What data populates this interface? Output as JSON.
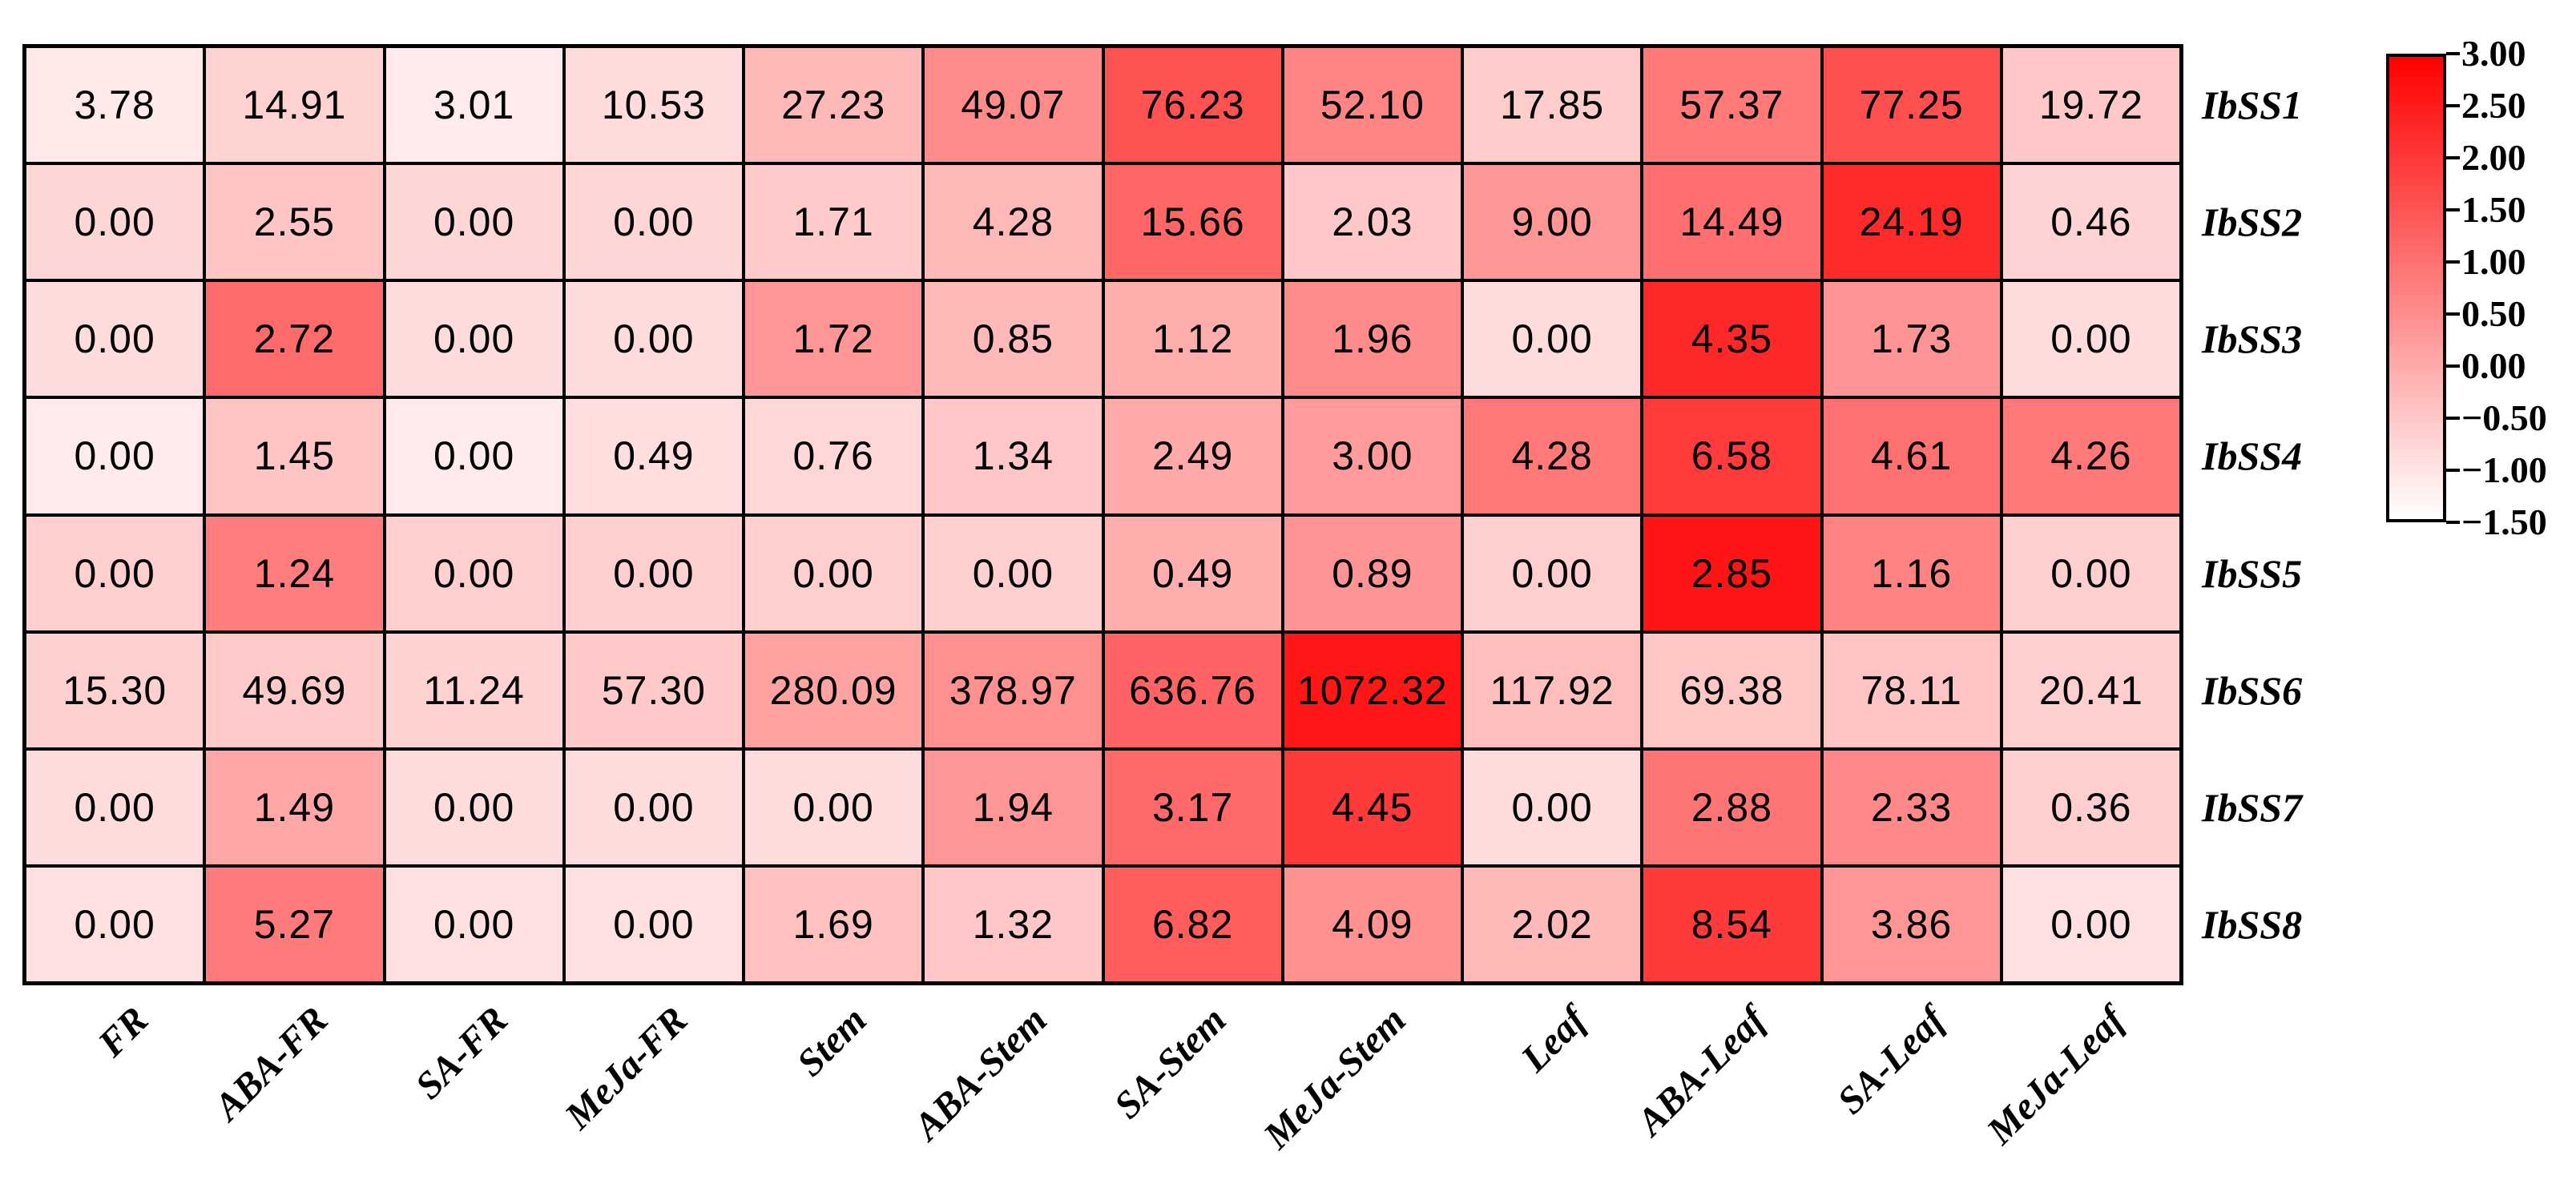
{
  "chart_data": {
    "type": "heatmap",
    "title": "",
    "columns": [
      "FR",
      "ABA-FR",
      "SA-FR",
      "MeJa-FR",
      "Stem",
      "ABA-Stem",
      "SA-Stem",
      "MeJa-Stem",
      "Leaf",
      "ABA-Leaf",
      "SA-Leaf",
      "MeJa-Leaf"
    ],
    "rows": [
      "IbSS1",
      "IbSS2",
      "IbSS3",
      "IbSS4",
      "IbSS5",
      "IbSS6",
      "IbSS7",
      "IbSS8"
    ],
    "values": [
      [
        3.78,
        14.91,
        3.01,
        10.53,
        27.23,
        49.07,
        76.23,
        52.1,
        17.85,
        57.37,
        77.25,
        19.72
      ],
      [
        0.0,
        2.55,
        0.0,
        0.0,
        1.71,
        4.28,
        15.66,
        2.03,
        9.0,
        14.49,
        24.19,
        0.46
      ],
      [
        0.0,
        2.72,
        0.0,
        0.0,
        1.72,
        0.85,
        1.12,
        1.96,
        0.0,
        4.35,
        1.73,
        0.0
      ],
      [
        0.0,
        1.45,
        0.0,
        0.49,
        0.76,
        1.34,
        2.49,
        3.0,
        4.28,
        6.58,
        4.61,
        4.26
      ],
      [
        0.0,
        1.24,
        0.0,
        0.0,
        0.0,
        0.0,
        0.49,
        0.89,
        0.0,
        2.85,
        1.16,
        0.0
      ],
      [
        15.3,
        49.69,
        11.24,
        57.3,
        280.09,
        378.97,
        636.76,
        1072.32,
        117.92,
        69.38,
        78.11,
        20.41
      ],
      [
        0.0,
        1.49,
        0.0,
        0.0,
        0.0,
        1.94,
        3.17,
        4.45,
        0.0,
        2.88,
        2.33,
        0.36
      ],
      [
        0.0,
        5.27,
        0.0,
        0.0,
        1.69,
        1.32,
        6.82,
        4.09,
        2.02,
        8.54,
        3.86,
        0.0
      ]
    ],
    "cell_value_decimals": 2,
    "color_scale": {
      "normalization": "row-zscore",
      "min": -1.5,
      "max": 3.0,
      "low_color": "#ffffff",
      "high_color": "#ff0000"
    },
    "grid_line_color": "#000000",
    "grid": true,
    "legend_position": "right",
    "colorbar": {
      "tick_labels": [
        "3.00",
        "2.50",
        "2.00",
        "1.50",
        "1.00",
        "0.50",
        "0.00",
        "−0.50",
        "−1.00",
        "−1.50"
      ],
      "top_value": 3.0,
      "bottom_value": -1.5
    }
  }
}
